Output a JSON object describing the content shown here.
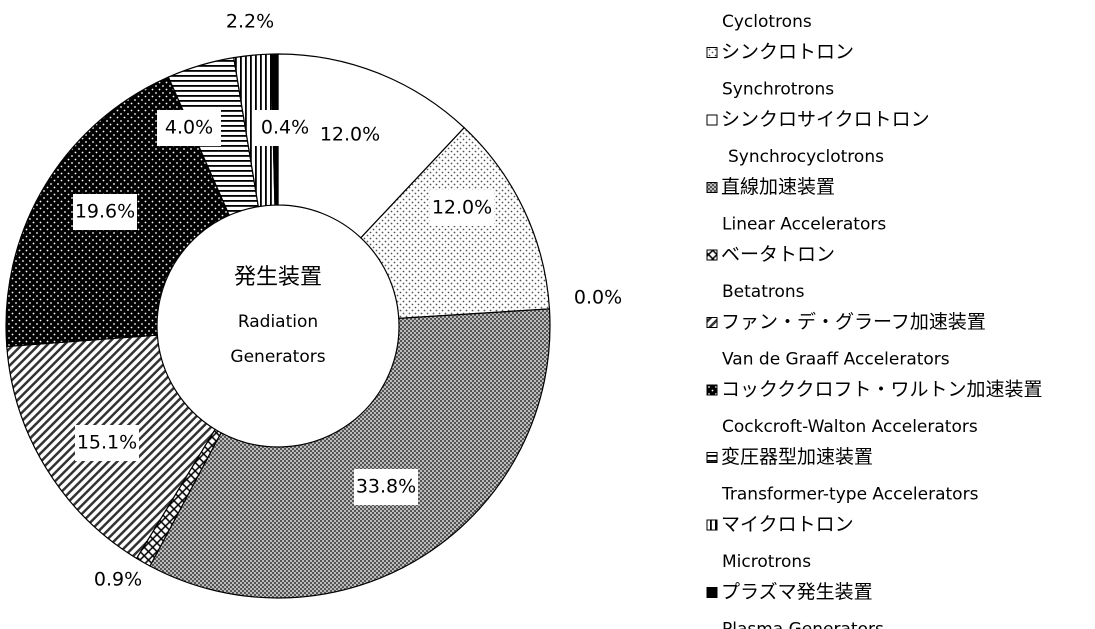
{
  "chart_data": {
    "type": "donut",
    "title": [
      "発生装置",
      "Radiation",
      "Generators"
    ],
    "categories": [
      null,
      "シンクロトロン",
      "シンクロサイクロトロン",
      "直線加速装置",
      "ベータトロン",
      "ファン・デ・グラーフ加速装置",
      "コックククロフト・ワルトン加速装置",
      "変圧器型加速装置",
      "マイクロトロン",
      "プラズマ発生装置"
    ],
    "categories_en": [
      "Cyclotrons",
      "Synchrotrons",
      "Synchrocyclotrons",
      "Linear Accelerators",
      "Betatrons",
      "Van de Graaff Accelerators",
      "Cockcroft-Walton Accelerators",
      "Transformer-type Accelerators",
      "Microtrons",
      "Plasma Generators"
    ],
    "values": [
      12.0,
      12.0,
      0.0,
      33.8,
      0.9,
      15.1,
      19.6,
      4.0,
      2.2,
      0.4
    ],
    "value_labels": [
      "12.0%",
      "12.0%",
      "0.0%",
      "33.8%",
      "0.9%",
      "15.1%",
      "19.6%",
      "4.0%",
      "2.2%",
      "0.4%"
    ],
    "patterns": [
      "white",
      "dots",
      "white",
      "checker",
      "cross",
      "diagonal",
      "black-dots",
      "horizontal",
      "vertical",
      "black"
    ]
  }
}
